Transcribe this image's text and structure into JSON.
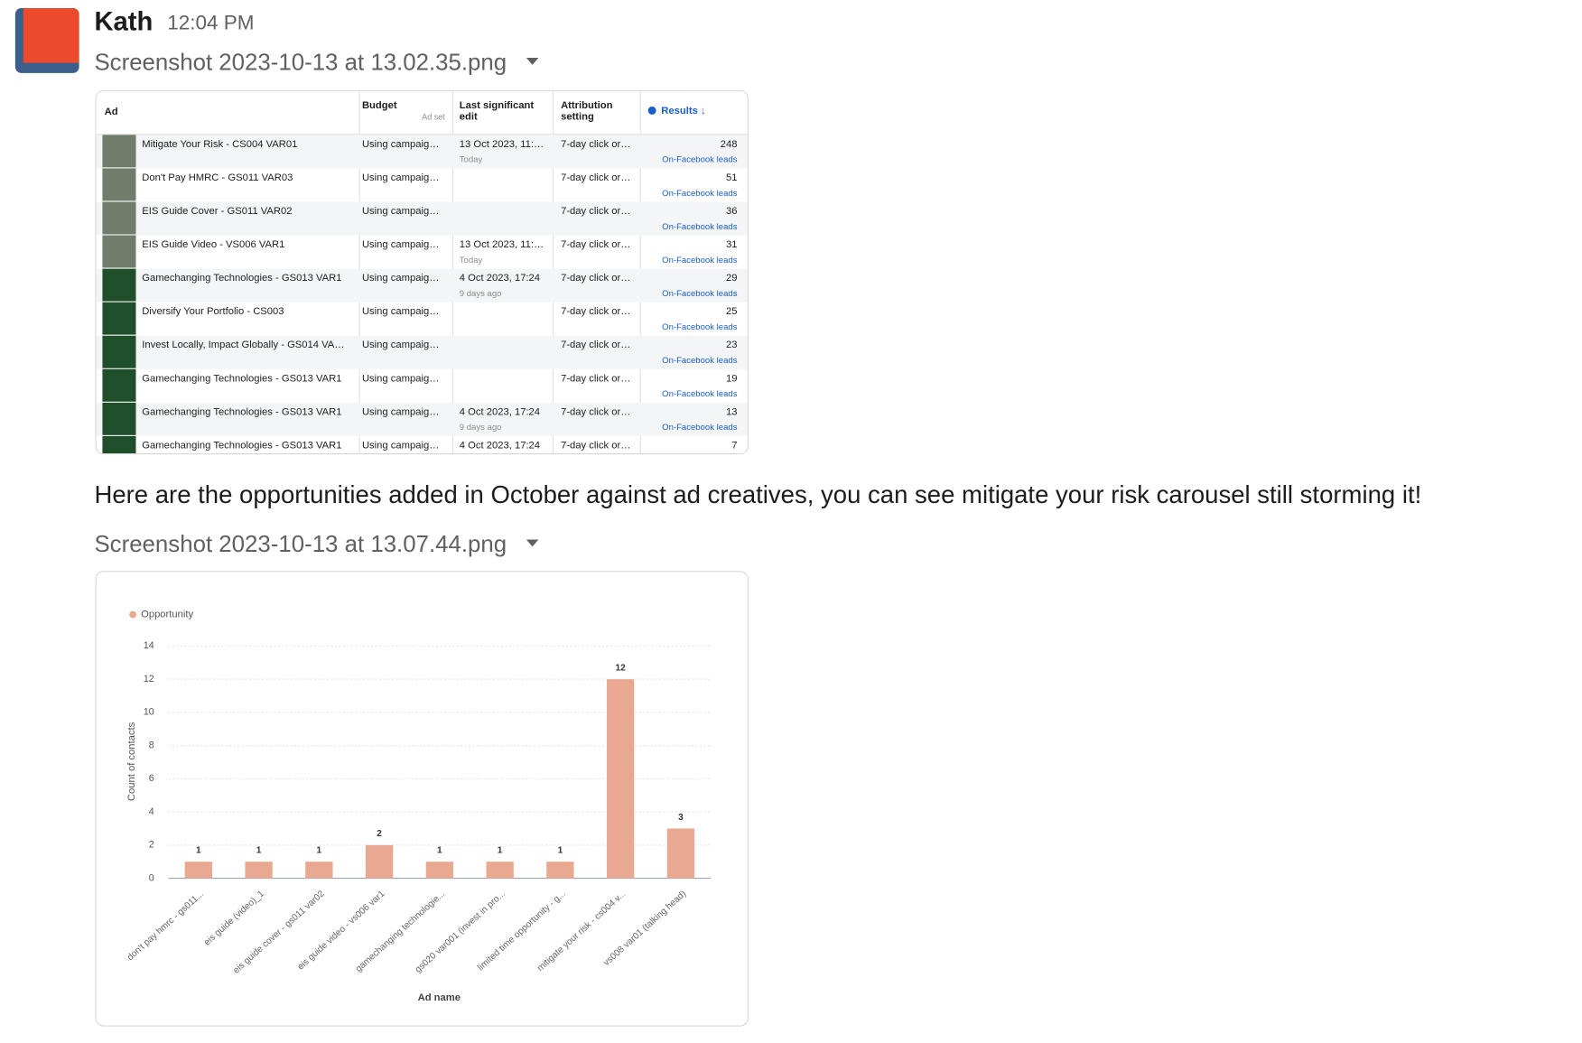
{
  "message": {
    "author": "Kath",
    "time": "12:04 PM",
    "files": [
      {
        "name": "Screenshot 2023-10-13 at 13.02.35.png"
      },
      {
        "name": "Screenshot 2023-10-13 at 13.07.44.png"
      }
    ],
    "text": "Here are the opportunities added in October against ad creatives, you can see mitigate your risk carousel still storming it!"
  },
  "table": {
    "headers": {
      "ad": "Ad",
      "budget": "Budget",
      "ad_set": "Ad set",
      "edit": "Last significant edit",
      "attribution": "Attribution setting",
      "results": "Results ↓"
    },
    "rows": [
      {
        "ad": "Mitigate Your Risk - CS004 VAR01",
        "budget": "Using campaig…",
        "edit": "13 Oct 2023, 11:…",
        "edit_note": "Today",
        "attribution": "7-day click or…",
        "results": "248",
        "results_label": "On-Facebook leads"
      },
      {
        "ad": "Don't Pay HMRC - GS011 VAR03",
        "budget": "Using campaig…",
        "attribution": "7-day click or…",
        "results": "51",
        "results_label": "On-Facebook leads"
      },
      {
        "ad": "EIS Guide Cover - GS011 VAR02",
        "budget": "Using campaig…",
        "attribution": "7-day click or…",
        "results": "36",
        "results_label": "On-Facebook leads"
      },
      {
        "ad": "EIS Guide Video - VS006 VAR1",
        "budget": "Using campaig…",
        "edit": "13 Oct 2023, 11:…",
        "edit_note": "Today",
        "attribution": "7-day click or…",
        "results": "31",
        "results_label": "On-Facebook leads"
      },
      {
        "ad": "Gamechanging Technologies - GS013 VAR1",
        "budget": "Using campaig…",
        "edit": "4 Oct 2023, 17:24",
        "edit_note": "9 days ago",
        "attribution": "7-day click or…",
        "results": "29",
        "results_label": "On-Facebook leads"
      },
      {
        "ad": "Diversify Your Portfolio - CS003",
        "budget": "Using campaig…",
        "attribution": "7-day click or…",
        "results": "25",
        "results_label": "On-Facebook leads"
      },
      {
        "ad": "Invest Locally, Impact Globally - GS014 VA…",
        "budget": "Using campaig…",
        "attribution": "7-day click or…",
        "results": "23",
        "results_label": "On-Facebook leads"
      },
      {
        "ad": "Gamechanging Technologies - GS013 VAR1",
        "budget": "Using campaig…",
        "attribution": "7-day click or…",
        "results": "19",
        "results_label": "On-Facebook leads"
      },
      {
        "ad": "Gamechanging Technologies - GS013 VAR1",
        "budget": "Using campaig…",
        "edit": "4 Oct 2023, 17:24",
        "edit_note": "9 days ago",
        "attribution": "7-day click or…",
        "results": "13",
        "results_label": "On-Facebook leads"
      },
      {
        "ad": "Gamechanging Technologies - GS013 VAR1",
        "budget": "Using campaig…",
        "edit": "4 Oct 2023, 17:24",
        "attribution": "7-day click or…",
        "results": "7"
      }
    ]
  },
  "chart_data": {
    "type": "bar",
    "x_label": "Ad name",
    "y_label": "Count of contacts",
    "categories": [
      "don't pay hmrc - gs011...",
      "eis guide (video)_1",
      "eis guide cover - gs011 var02",
      "eis guide video - vs006 var1",
      "gamechanging technologie...",
      "gs020 var001 (invest in pro...",
      "limited time opportunity - g...",
      "mitigate your risk - cs004 v...",
      "vs008 var01 (talking head)"
    ],
    "series": [
      {
        "name": "Opportunity",
        "color": "#e8a990",
        "values": [
          1,
          1,
          1,
          2,
          1,
          1,
          1,
          12,
          3
        ]
      }
    ],
    "ylim": [
      0,
      14
    ],
    "yticks": [
      0,
      2,
      4,
      6,
      8,
      10,
      12,
      14
    ],
    "grid": true,
    "legend": "top-left"
  }
}
